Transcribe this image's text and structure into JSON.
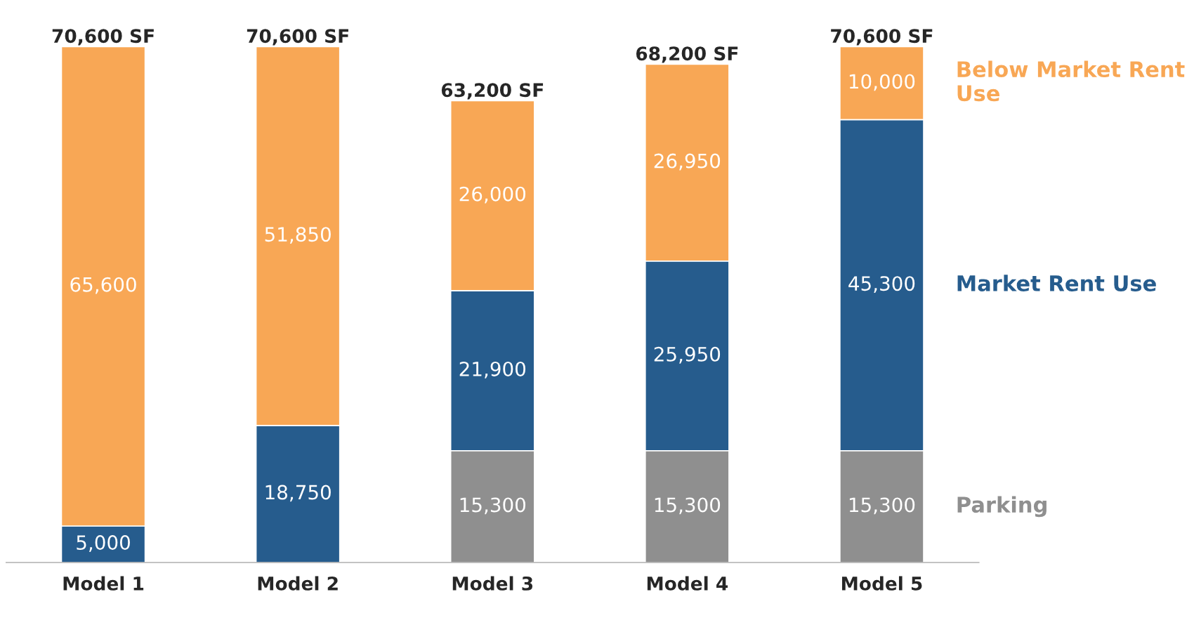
{
  "chart_data": {
    "type": "bar",
    "stacked": true,
    "categories": [
      "Model 1",
      "Model 2",
      "Model 3",
      "Model 4",
      "Model 5"
    ],
    "series": [
      {
        "name": "Parking",
        "color": "#8f8f8f",
        "values": [
          null,
          null,
          15300,
          15300,
          15300
        ],
        "value_labels": [
          null,
          null,
          "15,300",
          "15,300",
          "15,300"
        ]
      },
      {
        "name": "Market Rent Use",
        "color": "#265c8d",
        "values": [
          5000,
          18750,
          21900,
          25950,
          45300
        ],
        "value_labels": [
          "5,000",
          "18,750",
          "21,900",
          "25,950",
          "45,300"
        ]
      },
      {
        "name": "Below Market Rent Use",
        "color": "#f8a755",
        "values": [
          65600,
          51850,
          26000,
          26950,
          10000
        ],
        "value_labels": [
          "65,600",
          "51,850",
          "26,000",
          "26,950",
          "10,000"
        ]
      }
    ],
    "totals": [
      "70,600 SF",
      "70,600 SF",
      "63,200 SF",
      "68,200 SF",
      "70,600 SF"
    ]
  }
}
